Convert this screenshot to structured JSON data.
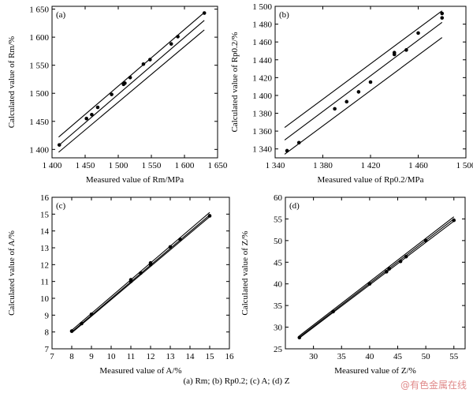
{
  "caption": "(a) Rm; (b) Rp0.2; (c) A; (d) Z",
  "watermark": "@有色金属在线",
  "colors": {
    "ink": "#000000",
    "watermark": "#e08a8a"
  },
  "chart_data": [
    {
      "type": "scatter",
      "panel": "(a)",
      "xlabel": "Measured value of Rm/MPa",
      "ylabel": "Calculated value of Rm/%",
      "xlim": [
        1400,
        1650
      ],
      "ylim": [
        1385,
        1655
      ],
      "xticks": [
        1400,
        1450,
        1500,
        1550,
        1600,
        1650
      ],
      "yticks": [
        1400,
        1450,
        1500,
        1550,
        1600,
        1650
      ],
      "x_tick_labels": [
        "1 400",
        "1 450",
        "1 500",
        "1 550",
        "1 600",
        "1 650"
      ],
      "y_tick_labels": [
        "1 400",
        "1 450",
        "1 500",
        "1 550",
        "1 600",
        "1 650"
      ],
      "points": [
        [
          1411,
          1408
        ],
        [
          1452,
          1455
        ],
        [
          1460,
          1462
        ],
        [
          1469,
          1475
        ],
        [
          1490,
          1498
        ],
        [
          1508,
          1516
        ],
        [
          1510,
          1518
        ],
        [
          1518,
          1528
        ],
        [
          1538,
          1552
        ],
        [
          1548,
          1560
        ],
        [
          1580,
          1588
        ],
        [
          1590,
          1601
        ],
        [
          1630,
          1643
        ]
      ],
      "lines": [
        {
          "x": [
            1410,
            1630
          ],
          "y": [
            1422,
            1644
          ]
        },
        {
          "x": [
            1410,
            1630
          ],
          "y": [
            1407,
            1630
          ]
        },
        {
          "x": [
            1410,
            1630
          ],
          "y": [
            1395,
            1613
          ]
        }
      ],
      "grid": false
    },
    {
      "type": "scatter",
      "panel": "(b)",
      "xlabel": "Measured value of Rp0.2/MPa",
      "ylabel": "Calculated value of Rp0.2/%",
      "xlim": [
        1340,
        1500
      ],
      "ylim": [
        1330,
        1500
      ],
      "xticks": [
        1340,
        1380,
        1420,
        1460,
        1500
      ],
      "yticks": [
        1340,
        1360,
        1380,
        1400,
        1420,
        1440,
        1460,
        1480,
        1500
      ],
      "x_tick_labels": [
        "1 340",
        "1 380",
        "1 420",
        "1 460",
        "1 500"
      ],
      "y_tick_labels": [
        "1 340",
        "1 360",
        "1 380",
        "1 400",
        "1 420",
        "1 440",
        "1 460",
        "1 480",
        "1 500"
      ],
      "points": [
        [
          1350,
          1338
        ],
        [
          1360,
          1347
        ],
        [
          1390,
          1385
        ],
        [
          1400,
          1393
        ],
        [
          1410,
          1404
        ],
        [
          1420,
          1415
        ],
        [
          1440,
          1446
        ],
        [
          1440,
          1448
        ],
        [
          1450,
          1451
        ],
        [
          1460,
          1470
        ],
        [
          1480,
          1487
        ],
        [
          1480,
          1492
        ]
      ],
      "lines": [
        {
          "x": [
            1348,
            1480
          ],
          "y": [
            1364,
            1495
          ]
        },
        {
          "x": [
            1348,
            1480
          ],
          "y": [
            1350,
            1482
          ]
        },
        {
          "x": [
            1348,
            1480
          ],
          "y": [
            1334,
            1465
          ]
        }
      ],
      "grid": false
    },
    {
      "type": "scatter",
      "panel": "(c)",
      "xlabel": "Measured value of A/%",
      "ylabel": "Calculated value of A/%",
      "xlim": [
        7,
        16
      ],
      "ylim": [
        7,
        16
      ],
      "xticks": [
        7,
        8,
        9,
        10,
        11,
        12,
        13,
        14,
        15,
        16
      ],
      "yticks": [
        7,
        8,
        9,
        10,
        11,
        12,
        13,
        14,
        15,
        16
      ],
      "x_tick_labels": [
        "7",
        "8",
        "9",
        "10",
        "11",
        "12",
        "13",
        "14",
        "15",
        "16"
      ],
      "y_tick_labels": [
        "7",
        "8",
        "9",
        "10",
        "11",
        "12",
        "13",
        "14",
        "15",
        "16"
      ],
      "points": [
        [
          8.0,
          8.05
        ],
        [
          8.5,
          8.5
        ],
        [
          9.0,
          9.05
        ],
        [
          11.0,
          11.0
        ],
        [
          11.0,
          11.1
        ],
        [
          11.5,
          11.5
        ],
        [
          12.0,
          12.0
        ],
        [
          12.0,
          12.1
        ],
        [
          13.0,
          13.05
        ],
        [
          13.5,
          13.5
        ],
        [
          15.0,
          14.9
        ]
      ],
      "lines": [
        {
          "x": [
            8,
            15
          ],
          "y": [
            8.1,
            15.1
          ]
        },
        {
          "x": [
            8,
            15
          ],
          "y": [
            8.0,
            14.95
          ]
        },
        {
          "x": [
            8,
            15
          ],
          "y": [
            7.95,
            14.85
          ]
        }
      ],
      "grid": false
    },
    {
      "type": "scatter",
      "panel": "(d)",
      "xlabel": "Measured value of Z/%",
      "ylabel": "Calculated value of Z/%",
      "xlim": [
        25,
        57
      ],
      "ylim": [
        25,
        60
      ],
      "xticks": [
        30,
        35,
        40,
        45,
        50,
        55
      ],
      "yticks": [
        25,
        30,
        35,
        40,
        45,
        50,
        55,
        60
      ],
      "x_tick_labels": [
        "30",
        "35",
        "40",
        "45",
        "50",
        "55"
      ],
      "y_tick_labels": [
        "25",
        "30",
        "35",
        "40",
        "45",
        "50",
        "55",
        "60"
      ],
      "points": [
        [
          27.5,
          27.6
        ],
        [
          33.5,
          33.6
        ],
        [
          40.0,
          40.0
        ],
        [
          43.0,
          42.8
        ],
        [
          43.5,
          43.5
        ],
        [
          45.5,
          45.2
        ],
        [
          46.5,
          46.3
        ],
        [
          50.0,
          50.0
        ],
        [
          55.0,
          54.7
        ]
      ],
      "lines": [
        {
          "x": [
            27.5,
            55
          ],
          "y": [
            28.0,
            55.5
          ]
        },
        {
          "x": [
            27.5,
            55
          ],
          "y": [
            27.7,
            55.0
          ]
        },
        {
          "x": [
            27.5,
            55
          ],
          "y": [
            27.5,
            54.5
          ]
        }
      ],
      "grid": false
    }
  ]
}
